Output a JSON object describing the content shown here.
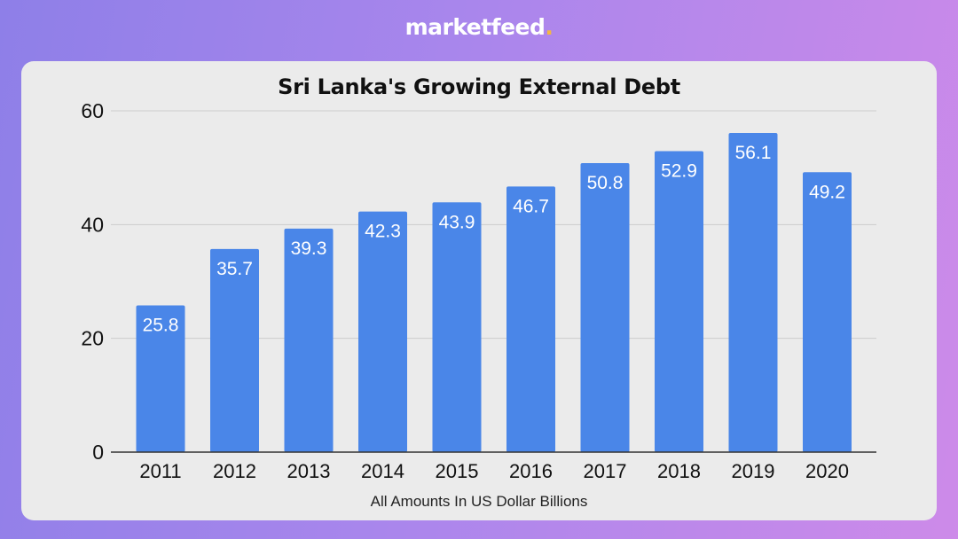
{
  "brand": {
    "name": "marketfeed",
    "dot": ".",
    "dot_color": "#f4b740"
  },
  "colors": {
    "bar": "#4a86e8",
    "card_background": "#ebebeb",
    "gridline": "#cccccc"
  },
  "chart_data": {
    "type": "bar",
    "title": "Sri Lanka's Growing External Debt",
    "xlabel": "All Amounts In US Dollar Billions",
    "ylabel": "",
    "categories": [
      "2011",
      "2012",
      "2013",
      "2014",
      "2015",
      "2016",
      "2017",
      "2018",
      "2019",
      "2020"
    ],
    "values": [
      25.8,
      35.7,
      39.3,
      42.3,
      43.9,
      46.7,
      50.8,
      52.9,
      56.1,
      49.2
    ],
    "value_labels": [
      "25.8",
      "35.7",
      "39.3",
      "42.3",
      "43.9",
      "46.7",
      "50.8",
      "52.9",
      "56.1",
      "49.2"
    ],
    "yticks": [
      "0",
      "20",
      "40",
      "60"
    ],
    "ylim": [
      0,
      60
    ],
    "grid": true,
    "legend": "none"
  }
}
